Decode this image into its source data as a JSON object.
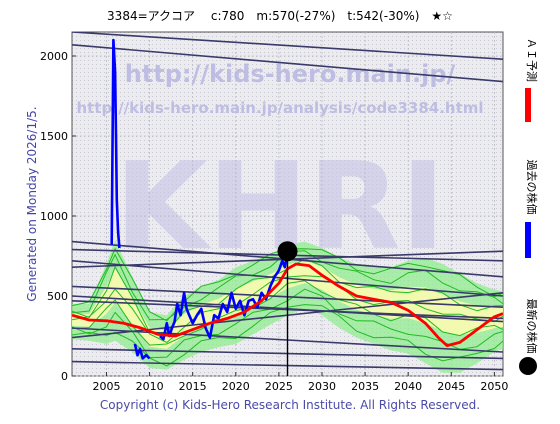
{
  "header": {
    "title": "3384=アクコア　 c:780　m:570(-27%)　t:542(-30%)　★☆"
  },
  "side_text": "Generated on Monday 2026/1/5.",
  "watermarks": {
    "url_main": "http://kids-hero.main.jp/",
    "url_analysis": "http://kids-hero.main.jp/analysis/code3384.html",
    "logo": "KHRI"
  },
  "legend": [
    {
      "label": "ＡＩ予測",
      "color": "#ff0000"
    },
    {
      "label": "過去の株価",
      "color": "#0000ff"
    },
    {
      "label": "最新の株価",
      "color": "#000000"
    }
  ],
  "footer": {
    "copyright": "Copyright (c) Kids-Hero Research Institute. All Rights Reserved."
  },
  "colors": {
    "plot_bg": "#e8e8ec",
    "history": "#0000ff",
    "ai_forecast": "#ff0000",
    "band_fill": "#90ee90",
    "band_lines": "#22bb22",
    "band_core": "#fffbb0",
    "trend_lines": "#3a3a6a",
    "latest_marker": "#000000"
  },
  "chart_data": {
    "type": "line",
    "title": "3384=アクコア　 c:780　m:570(-27%)　t:542(-30%)　★☆",
    "xlabel": "",
    "ylabel": "",
    "xlim": [
      2001,
      2051
    ],
    "ylim": [
      0,
      2150
    ],
    "x_ticks": [
      2005,
      2010,
      2015,
      2020,
      2025,
      2030,
      2035,
      2040,
      2045,
      2050
    ],
    "y_ticks": [
      0,
      500,
      1000,
      1500,
      2000
    ],
    "grid": true,
    "latest": {
      "x": 2026.0,
      "y": 780
    },
    "history": [
      [
        2005.6,
        820
      ],
      [
        2005.8,
        2100
      ],
      [
        2006.0,
        1900
      ],
      [
        2006.1,
        1500
      ],
      [
        2006.2,
        1100
      ],
      [
        2006.35,
        900
      ],
      [
        2006.5,
        800
      ],
      [
        2008.3,
        200
      ],
      [
        2008.6,
        130
      ],
      [
        2008.9,
        170
      ],
      [
        2009.2,
        110
      ],
      [
        2009.6,
        130
      ],
      [
        2010.0,
        110
      ],
      [
        2011.2,
        250
      ],
      [
        2011.6,
        230
      ],
      [
        2012.0,
        330
      ],
      [
        2012.3,
        250
      ],
      [
        2012.6,
        300
      ],
      [
        2012.9,
        340
      ],
      [
        2013.2,
        450
      ],
      [
        2013.6,
        380
      ],
      [
        2014.0,
        520
      ],
      [
        2014.3,
        420
      ],
      [
        2014.6,
        380
      ],
      [
        2015.0,
        330
      ],
      [
        2015.5,
        380
      ],
      [
        2016.0,
        420
      ],
      [
        2016.5,
        300
      ],
      [
        2017.0,
        240
      ],
      [
        2017.5,
        380
      ],
      [
        2018.0,
        360
      ],
      [
        2018.5,
        450
      ],
      [
        2019.0,
        400
      ],
      [
        2019.5,
        520
      ],
      [
        2020.0,
        420
      ],
      [
        2020.5,
        470
      ],
      [
        2021.0,
        380
      ],
      [
        2021.5,
        470
      ],
      [
        2022.0,
        480
      ],
      [
        2022.5,
        430
      ],
      [
        2023.0,
        520
      ],
      [
        2023.5,
        480
      ],
      [
        2024.0,
        560
      ],
      [
        2024.5,
        620
      ],
      [
        2025.0,
        660
      ],
      [
        2025.4,
        720
      ],
      [
        2025.7,
        680
      ],
      [
        2026.0,
        780
      ]
    ],
    "ai_forecast": [
      [
        2001.0,
        380
      ],
      [
        2003.0,
        350
      ],
      [
        2005.0,
        345
      ],
      [
        2007.0,
        330
      ],
      [
        2009.0,
        300
      ],
      [
        2011.0,
        260
      ],
      [
        2013.0,
        250
      ],
      [
        2015.0,
        290
      ],
      [
        2017.0,
        330
      ],
      [
        2019.0,
        360
      ],
      [
        2021.0,
        400
      ],
      [
        2023.0,
        470
      ],
      [
        2025.0,
        580
      ],
      [
        2026.0,
        670
      ],
      [
        2027.0,
        700
      ],
      [
        2028.5,
        690
      ],
      [
        2030.0,
        630
      ],
      [
        2032.0,
        560
      ],
      [
        2034.0,
        500
      ],
      [
        2036.0,
        480
      ],
      [
        2038.0,
        460
      ],
      [
        2040.0,
        410
      ],
      [
        2042.0,
        330
      ],
      [
        2043.5,
        240
      ],
      [
        2044.5,
        190
      ],
      [
        2046.0,
        210
      ],
      [
        2048.0,
        290
      ],
      [
        2050.0,
        370
      ],
      [
        2051.0,
        390
      ]
    ],
    "band_upper": [
      [
        2001,
        450
      ],
      [
        2003,
        450
      ],
      [
        2005,
        700
      ],
      [
        2006,
        850
      ],
      [
        2008,
        620
      ],
      [
        2010,
        400
      ],
      [
        2012,
        380
      ],
      [
        2014,
        500
      ],
      [
        2016,
        560
      ],
      [
        2018,
        600
      ],
      [
        2020,
        680
      ],
      [
        2022,
        720
      ],
      [
        2024,
        760
      ],
      [
        2026,
        820
      ],
      [
        2028,
        840
      ],
      [
        2030,
        800
      ],
      [
        2032,
        740
      ],
      [
        2034,
        700
      ],
      [
        2036,
        680
      ],
      [
        2038,
        680
      ],
      [
        2040,
        720
      ],
      [
        2042,
        740
      ],
      [
        2044,
        700
      ],
      [
        2046,
        640
      ],
      [
        2048,
        580
      ],
      [
        2050,
        540
      ],
      [
        2051,
        530
      ]
    ],
    "band_lower": [
      [
        2001,
        230
      ],
      [
        2003,
        220
      ],
      [
        2005,
        200
      ],
      [
        2006,
        220
      ],
      [
        2008,
        150
      ],
      [
        2010,
        50
      ],
      [
        2012,
        40
      ],
      [
        2014,
        100
      ],
      [
        2016,
        150
      ],
      [
        2018,
        180
      ],
      [
        2020,
        200
      ],
      [
        2022,
        260
      ],
      [
        2024,
        320
      ],
      [
        2026,
        380
      ],
      [
        2028,
        420
      ],
      [
        2030,
        380
      ],
      [
        2032,
        300
      ],
      [
        2034,
        240
      ],
      [
        2036,
        200
      ],
      [
        2038,
        160
      ],
      [
        2040,
        140
      ],
      [
        2042,
        80
      ],
      [
        2044,
        20
      ],
      [
        2046,
        20
      ],
      [
        2048,
        80
      ],
      [
        2050,
        150
      ],
      [
        2051,
        170
      ]
    ],
    "trend_lines": [
      [
        [
          2001,
          2150
        ],
        [
          2051,
          1980
        ]
      ],
      [
        [
          2001,
          2070
        ],
        [
          2051,
          1840
        ]
      ],
      [
        [
          2001,
          840
        ],
        [
          2051,
          620
        ]
      ],
      [
        [
          2001,
          790
        ],
        [
          2051,
          720
        ]
      ],
      [
        [
          2001,
          720
        ],
        [
          2051,
          500
        ]
      ],
      [
        [
          2001,
          680
        ],
        [
          2051,
          780
        ]
      ],
      [
        [
          2001,
          560
        ],
        [
          2051,
          430
        ]
      ],
      [
        [
          2001,
          500
        ],
        [
          2051,
          340
        ]
      ],
      [
        [
          2001,
          470
        ],
        [
          2051,
          360
        ]
      ],
      [
        [
          2001,
          300
        ],
        [
          2051,
          150
        ]
      ],
      [
        [
          2001,
          240
        ],
        [
          2051,
          520
        ]
      ],
      [
        [
          2001,
          170
        ],
        [
          2051,
          110
        ]
      ],
      [
        [
          2001,
          90
        ],
        [
          2051,
          40
        ]
      ]
    ]
  }
}
